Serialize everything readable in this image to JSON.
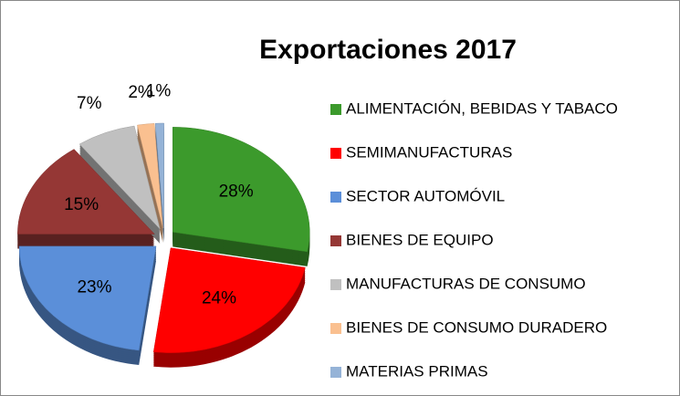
{
  "chart_data": {
    "type": "pie",
    "title": "Exportaciones 2017",
    "categories": [
      "ALIMENTACIÓN, BEBIDAS Y TABACO",
      "SEMIMANUFACTURAS",
      "SECTOR AUTOMÓVIL",
      "BIENES DE EQUIPO",
      "MANUFACTURAS DE CONSUMO",
      "BIENES DE CONSUMO DURADERO",
      "MATERIAS PRIMAS"
    ],
    "values": [
      28,
      24,
      23,
      15,
      7,
      2,
      1
    ],
    "value_labels": [
      "28%",
      "24%",
      "23%",
      "15%",
      "7%",
      "2%",
      "1%"
    ],
    "colors": [
      "#3c9a2c",
      "#ff0000",
      "#5b8fd9",
      "#953735",
      "#c0c0c0",
      "#fac090",
      "#95b3d7"
    ],
    "legend": "right"
  }
}
